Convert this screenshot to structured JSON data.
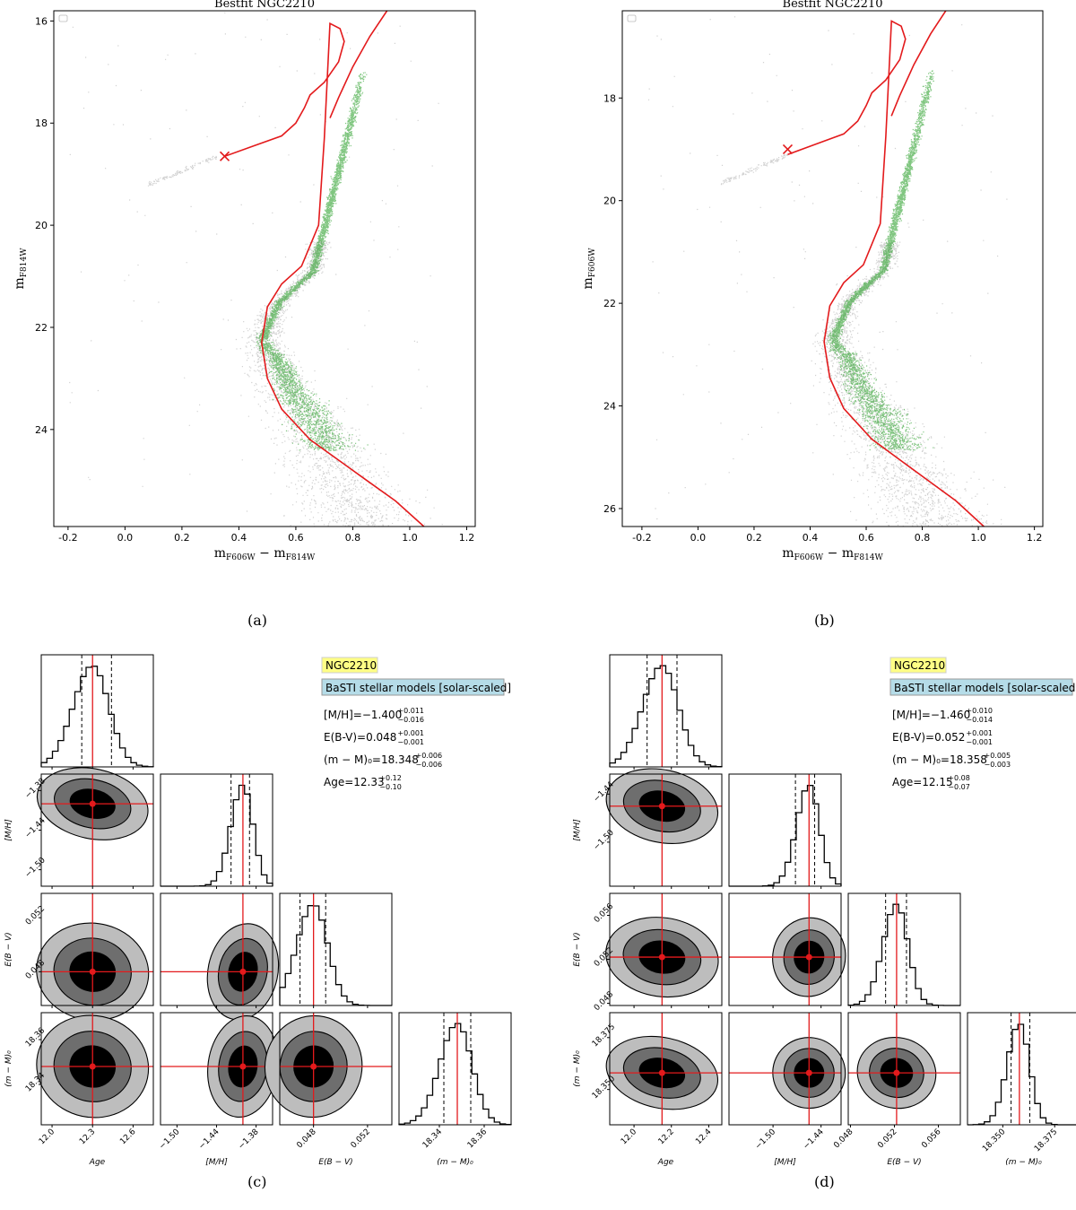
{
  "chart_data": [
    {
      "panel": "(a)",
      "type": "scatter",
      "title": "Bestfit NGC2210",
      "xlabel_main": "m",
      "xlabel_sub1": "F606W",
      "xlabel_mid": " − m",
      "xlabel_sub2": "F814W",
      "ylabel_main": "m",
      "ylabel_sub": "F814W",
      "xlim": [
        -0.25,
        1.23
      ],
      "ylim": [
        25.9,
        15.8
      ],
      "y_inverted": true,
      "xticks": [
        -0.2,
        0.0,
        0.2,
        0.4,
        0.6,
        0.8,
        1.0,
        1.2
      ],
      "yticks": [
        16,
        18,
        20,
        22,
        24
      ],
      "grid": false,
      "legend": "top-left (empty box)",
      "colors": {
        "isochrone": "#e31a1c",
        "selected": "#2ca02c",
        "field": "#9a9a9a"
      },
      "isochrone": {
        "x": [
          0.35,
          0.45,
          0.55,
          0.6,
          0.63,
          0.65,
          0.7,
          0.75,
          0.77,
          0.755,
          0.72,
          0.7,
          0.68,
          0.62,
          0.55,
          0.5,
          0.48,
          0.5,
          0.55,
          0.65,
          0.75,
          0.85,
          0.95,
          1.05
        ],
        "y": [
          18.65,
          18.45,
          18.25,
          18.0,
          17.7,
          17.45,
          17.2,
          16.8,
          16.4,
          16.15,
          16.05,
          18.3,
          20.0,
          20.8,
          21.15,
          21.6,
          22.3,
          23.0,
          23.6,
          24.2,
          24.6,
          25.0,
          25.4,
          25.9
        ]
      },
      "isochrone_upper": {
        "x": [
          0.75,
          0.8,
          0.86,
          0.92
        ],
        "y": [
          17.5,
          16.9,
          16.3,
          15.8
        ]
      },
      "hb_marker": {
        "x": 0.35,
        "y": 18.65,
        "symbol": "x"
      }
    },
    {
      "panel": "(b)",
      "type": "scatter",
      "title": "Bestfit NGC2210",
      "xlabel_main": "m",
      "xlabel_sub1": "F606W",
      "xlabel_mid": " − m",
      "xlabel_sub2": "F814W",
      "ylabel_main": "m",
      "ylabel_sub": "F606W",
      "xlim": [
        -0.27,
        1.23
      ],
      "ylim": [
        26.35,
        16.3
      ],
      "y_inverted": true,
      "xticks": [
        -0.2,
        0.0,
        0.2,
        0.4,
        0.6,
        0.8,
        1.0,
        1.2
      ],
      "yticks": [
        18,
        20,
        22,
        24,
        26
      ],
      "grid": false,
      "legend": "top-left (empty box)",
      "colors": {
        "isochrone": "#e31a1c",
        "selected": "#2ca02c",
        "field": "#9a9a9a"
      },
      "hb_marker": {
        "x": 0.32,
        "y": 19.0,
        "symbol": "x"
      }
    },
    {
      "panel": "(c)",
      "type": "corner",
      "labels_box": {
        "cluster": "NGC2210",
        "models": "BaSTI stellar models [solar-scaled]"
      },
      "results": [
        {
          "name": "[M/H]",
          "text": "[M/H]=−1.400",
          "sup": "+0.011",
          "sub": "−0.016",
          "value": -1.4
        },
        {
          "name": "E(B-V)",
          "text": "E(B-V)=0.048",
          "sup": "+0.001",
          "sub": "−0.001",
          "value": 0.048
        },
        {
          "name": "(m-M)0",
          "text": "(m − M)₀=18.348",
          "sup": "+0.006",
          "sub": "−0.006",
          "value": 18.348
        },
        {
          "name": "Age",
          "text": "Age=12.33",
          "sup": "+0.12",
          "sub": "−0.10",
          "value": 12.33
        }
      ],
      "params": [
        {
          "label": "Age",
          "best": 12.3,
          "lo": 12.22,
          "hi": 12.44,
          "range": [
            11.92,
            12.75
          ],
          "ticks": [
            "12.0",
            "12.3",
            "12.6"
          ],
          "tickvals": [
            12.0,
            12.3,
            12.6
          ]
        },
        {
          "label": "[M/H]",
          "best": -1.4,
          "lo": -1.418,
          "hi": -1.39,
          "range": [
            -1.525,
            -1.355
          ],
          "ticks": [
            "−1.50",
            "−1.44",
            "−1.38"
          ],
          "tickvals": [
            -1.5,
            -1.44,
            -1.38
          ]
        },
        {
          "label": "E(B − V)",
          "best": 0.048,
          "lo": 0.047,
          "hi": 0.0489,
          "range": [
            0.0455,
            0.0538
          ],
          "ticks": [
            "0.048",
            "0.052"
          ],
          "tickvals": [
            0.048,
            0.052
          ]
        },
        {
          "label": "(m − M)₀",
          "best": 18.348,
          "lo": 18.342,
          "hi": 18.354,
          "range": [
            18.322,
            18.372
          ],
          "ticks": [
            "18.34",
            "18.36"
          ],
          "tickvals": [
            18.34,
            18.36
          ]
        }
      ]
    },
    {
      "panel": "(d)",
      "type": "corner",
      "labels_box": {
        "cluster": "NGC2210",
        "models": "BaSTI stellar models [solar-scaled]"
      },
      "results": [
        {
          "name": "[M/H]",
          "text": "[M/H]=−1.460",
          "sup": "+0.010",
          "sub": "−0.014",
          "value": -1.46
        },
        {
          "name": "E(B-V)",
          "text": "E(B-V)=0.052",
          "sup": "+0.001",
          "sub": "−0.001",
          "value": 0.052
        },
        {
          "name": "(m-M)0",
          "text": "(m − M)₀=18.358",
          "sup": "+0.005",
          "sub": "−0.003",
          "value": 18.358
        },
        {
          "name": "Age",
          "text": "Age=12.15",
          "sup": "+0.08",
          "sub": "−0.07",
          "value": 12.15
        }
      ],
      "params": [
        {
          "label": "Age",
          "best": 12.15,
          "lo": 12.07,
          "hi": 12.23,
          "range": [
            11.87,
            12.47
          ],
          "ticks": [
            "12.0",
            "12.2",
            "12.4"
          ],
          "tickvals": [
            12.0,
            12.2,
            12.4
          ]
        },
        {
          "label": "[M/H]",
          "best": -1.455,
          "lo": -1.472,
          "hi": -1.448,
          "range": [
            -1.555,
            -1.415
          ],
          "ticks": [
            "−1.50",
            "−1.44"
          ],
          "tickvals": [
            -1.5,
            -1.44
          ]
        },
        {
          "label": "E(B − V)",
          "best": 0.0522,
          "lo": 0.0512,
          "hi": 0.0531,
          "range": [
            0.0478,
            0.058
          ],
          "ticks": [
            "0.048",
            "0.052",
            "0.056"
          ],
          "tickvals": [
            0.048,
            0.052,
            0.056
          ]
        },
        {
          "label": "(m − M)₀",
          "best": 18.358,
          "lo": 18.354,
          "hi": 18.363,
          "range": [
            18.333,
            18.387
          ],
          "ticks": [
            "18.350",
            "18.375"
          ],
          "tickvals": [
            18.35,
            18.375
          ]
        }
      ]
    }
  ],
  "captions": [
    "(a)",
    "(b)",
    "(c)",
    "(d)"
  ]
}
